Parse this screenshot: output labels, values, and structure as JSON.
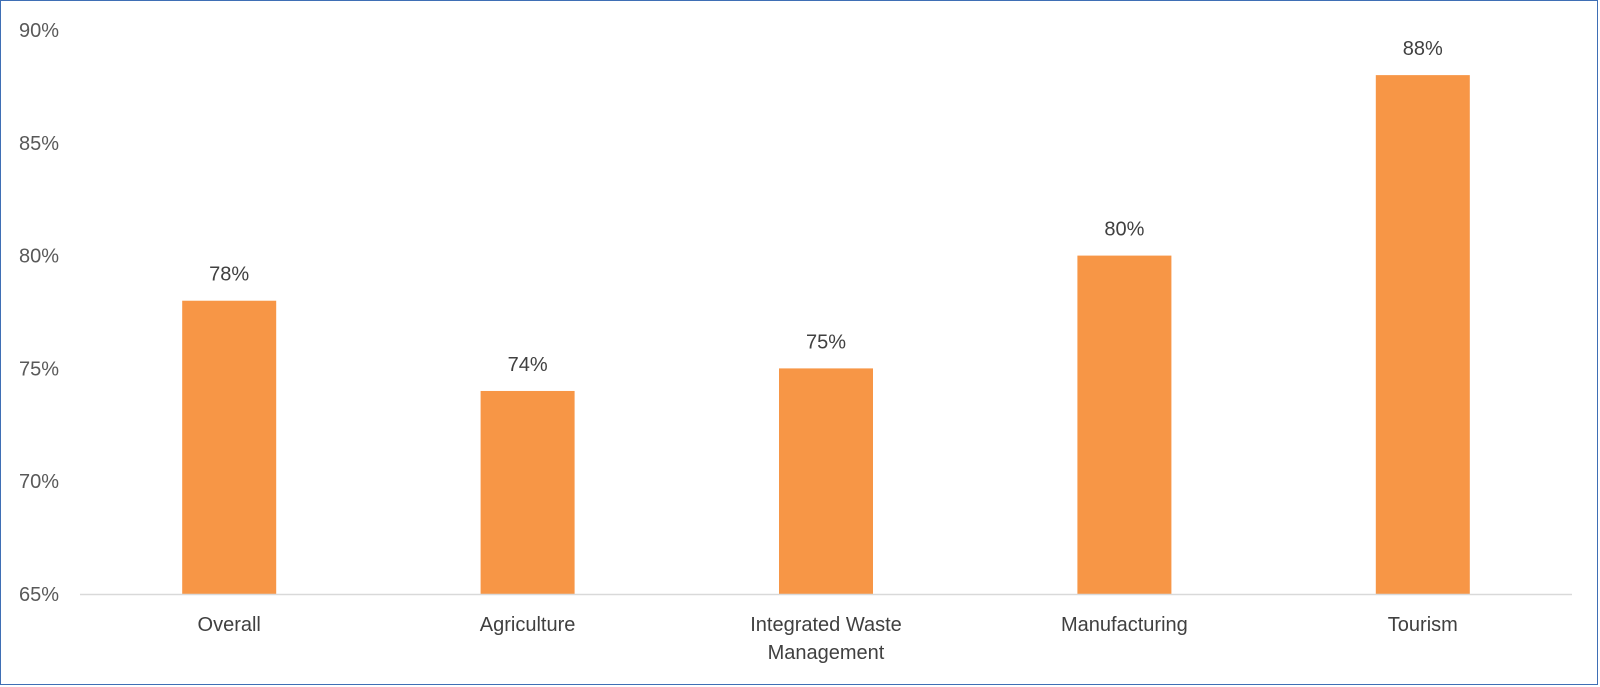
{
  "chart_data": {
    "type": "bar",
    "categories": [
      "Overall",
      "Agriculture",
      "Integrated Waste Management",
      "Manufacturing",
      "Tourism"
    ],
    "category_label_lines": [
      [
        "Overall"
      ],
      [
        "Agriculture"
      ],
      [
        "Integrated Waste",
        "Management"
      ],
      [
        "Manufacturing"
      ],
      [
        "Tourism"
      ]
    ],
    "values": [
      78,
      74,
      75,
      80,
      88
    ],
    "data_labels": [
      "78%",
      "74%",
      "75%",
      "80%",
      "88%"
    ],
    "ylim": [
      65,
      90
    ],
    "yticks": [
      65,
      70,
      75,
      80,
      85,
      90
    ],
    "ytick_labels": [
      "65%",
      "70%",
      "75%",
      "80%",
      "85%",
      "90%"
    ],
    "title": "",
    "xlabel": "",
    "ylabel": "",
    "grid": false,
    "legend": "none",
    "colors": {
      "bar": "#f79646",
      "axis_line": "#d9d9d9",
      "frame": "#3f6fb5"
    }
  }
}
